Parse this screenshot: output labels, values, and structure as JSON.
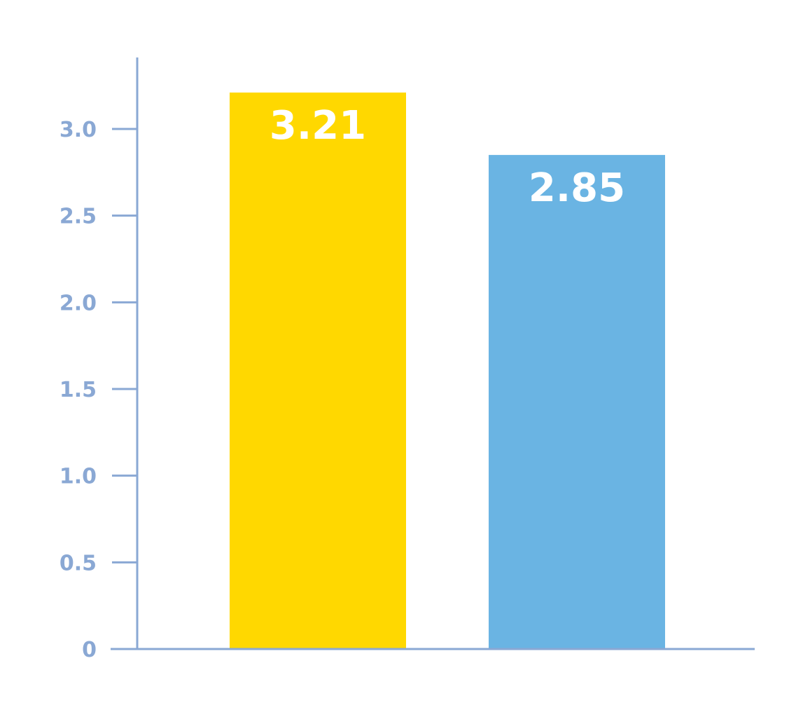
{
  "chart_data": {
    "type": "bar",
    "categories": [
      "",
      ""
    ],
    "values": [
      3.21,
      2.85
    ],
    "data_labels": [
      "3.21",
      "2.85"
    ],
    "colors": [
      "#ffd800",
      "#6ab4e3"
    ],
    "axis_color": "#8aa8d4",
    "ylim": [
      0,
      3.4
    ],
    "yticks": [
      0,
      0.5,
      1.0,
      1.5,
      2.0,
      2.5,
      3.0
    ],
    "ytick_labels": [
      "0",
      "0.5",
      "1.0",
      "1.5",
      "2.0",
      "2.5",
      "3.0"
    ],
    "grid": false,
    "legend": "none",
    "title": "",
    "xlabel": "",
    "ylabel": ""
  }
}
